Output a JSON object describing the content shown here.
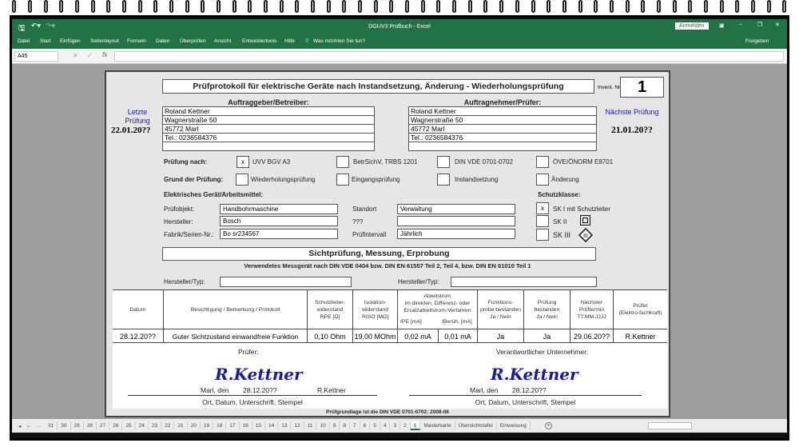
{
  "window": {
    "title": "DGUV3 Prüfbuch - Excel",
    "signin": "Anmelden",
    "share": "Freigeben",
    "colors": {
      "accent": "#217346"
    }
  },
  "ribbon": {
    "tabs": [
      "Datei",
      "Start",
      "Einfügen",
      "Seitenlayout",
      "Formeln",
      "Daten",
      "Überprüfen",
      "Ansicht",
      "Entwicklertools",
      "Hilfe"
    ],
    "tell_me": "Was möchten Sie tun?"
  },
  "formula_bar": {
    "name_box": "A45",
    "fx": "fx",
    "value": ""
  },
  "form": {
    "title": "Prüfprotokoll für elektrische Geräte nach Instandsetzung, Änderung - Wiederholungsprüfung",
    "invent_label": "Invent. Nr.",
    "invent_value": "1",
    "client_label": "Auftraggeber/Betreiber:",
    "contractor_label": "Auftragnehmer/Prüfer:",
    "client": [
      "Roland Kettner",
      "Wagnerstraße 50",
      "45772 Marl",
      "Tel.: 0236584376",
      ""
    ],
    "contractor": [
      "Roland Kettner",
      "Wagnerstraße 50",
      "45772 Marl",
      "Tel.: 0236584376",
      ""
    ],
    "last_label_1": "Letzte",
    "last_label_2": "Prüfung",
    "last_date": "22.01.20??",
    "next_label": "Nächste Prüfung",
    "next_date": "21.01.20??",
    "basis_label": "Prüfung nach:",
    "basis": [
      {
        "label": "UVV BGV A3",
        "mark": "x"
      },
      {
        "label": "BetrSichV, TRBS 1201",
        "mark": ""
      },
      {
        "label": "DIN VDE 0701-0702",
        "mark": ""
      },
      {
        "label": "ÖVE/ÖNORM E8701",
        "mark": ""
      }
    ],
    "reason_label": "Grund der Prüfung:",
    "reasons": [
      {
        "label": "Wiederholungsprüfung",
        "mark": ""
      },
      {
        "label": "Eingangsprüfung",
        "mark": ""
      },
      {
        "label": "Instandsetzung",
        "mark": ""
      },
      {
        "label": "Änderung",
        "mark": ""
      }
    ],
    "device_label": "Elektrisches Gerät/Arbeitsmittel:",
    "class_label": "Schutzklasse:",
    "fields": {
      "object_label": "Prüfobjekt:",
      "object": "Handbohrmaschine",
      "maker_label": "Hersteller:",
      "maker": "Bosch",
      "serial_label": "Fabrik/Serien-Nr.:",
      "serial": "Bo sr234567",
      "location_label": "Standort",
      "location": "Verwaltung",
      "unknown_label": "???",
      "unknown": "",
      "interval_label": "Prüfintervall",
      "interval": "Jährlich"
    },
    "classes": [
      {
        "label": "SK I mit Schutzleiter",
        "mark": "x"
      },
      {
        "label": "SK II",
        "mark": ""
      },
      {
        "label": "SK III",
        "mark": ""
      }
    ],
    "section_title": "Sichtprüfung, Messung, Erprobung",
    "device_note": "Verwendetes Messgerät nach DIN VDE 0404 bzw. DIN EN 61557 Teil 2, Teil 4, bzw. DIN EN 61010 Teil 1",
    "meter_label": "Hersteller/Typ:",
    "meter1": "",
    "meter2": "",
    "table": {
      "headers": [
        "Datum",
        "Besichtigung / Bemerkung /  Protokoll",
        "Schutzleiter-\nwiderstand\nRPE [Ω]",
        "Isolation-\nwiderstand\nRISO [MΩ]",
        "Ableitstrom\nim direkten, Differenz- oder\nErsatzableitstrom-Verfahren",
        "Funktions-\nprobe bestanden\nJa / Nein",
        "Prüfung\nbestanden\nJa / Nein",
        "Nächster\nPrüftermin\nTT.MM.JJJJ",
        "Prüfer\n(Elektro-fachkraft)"
      ],
      "sub_ipe": "IPE [mA]",
      "sub_iber": "IBerüh. [mA]",
      "row": [
        "28.12.20??",
        "Guter Sichtzustand einwandfreie Funktion",
        "0,10 Ohm",
        "19,00 MOhm",
        "0,02 mA",
        "0,01 mA",
        "Ja",
        "Ja",
        "29.06.20??",
        "R.Kettner"
      ]
    },
    "tester_label": "Prüfer:",
    "owner_label": "Verantwortlicher Unternehmer:",
    "signature": "R.Kettner",
    "place_label": "Marl, den",
    "sign_date": "28.12.20??",
    "tester_name": "R.Kettner",
    "sign_caption": "Ort, Datum, Unterschrift, Stempel",
    "footer": "Prüfgrundlage ist die DIN VDE 0701-0702: 2008-06"
  },
  "sheet_tabs": [
    "31",
    "30",
    "29",
    "28",
    "27",
    "26",
    "25",
    "24",
    "23",
    "22",
    "21",
    "20",
    "19",
    "18",
    "17",
    "16",
    "15",
    "14",
    "13",
    "12",
    "11",
    "10",
    "9",
    "8",
    "7",
    "6",
    "5",
    "4",
    "3",
    "2",
    "1",
    "Masterkarte",
    "Übersichtstafel",
    "Einweisung"
  ],
  "active_tab": "1"
}
